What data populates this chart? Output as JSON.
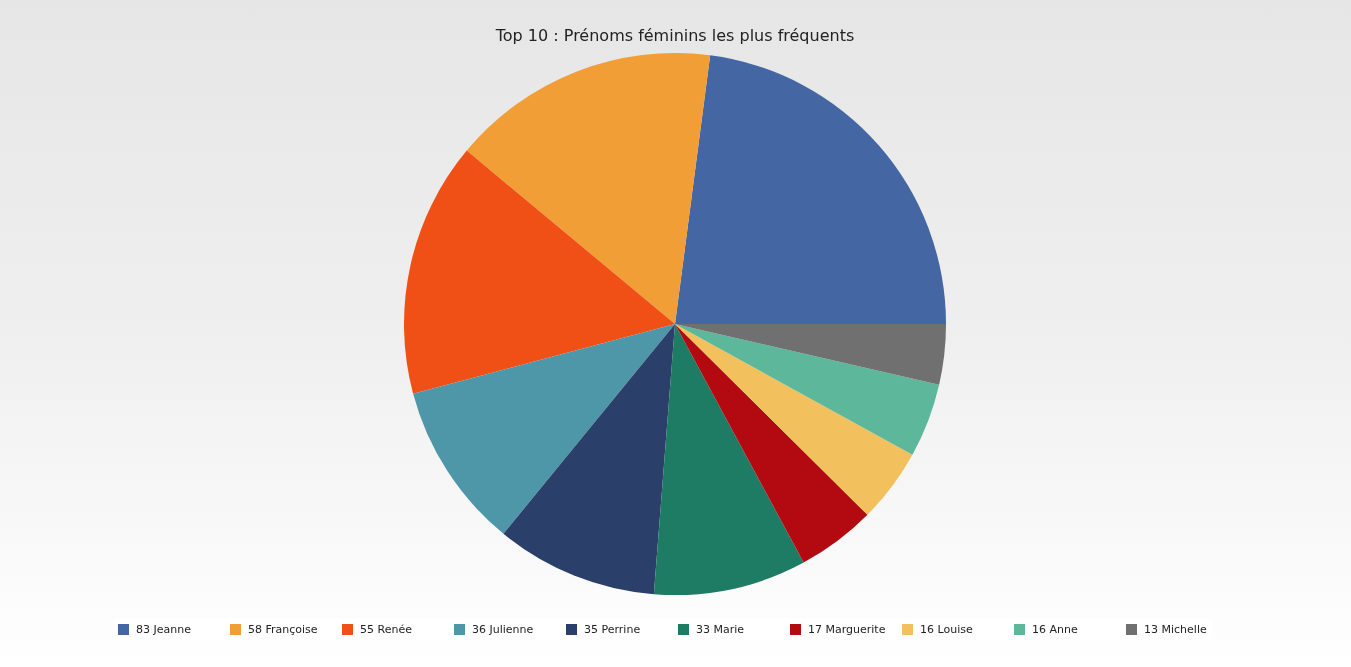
{
  "chart_data": {
    "type": "pie",
    "title": "Top 10 : Prénoms féminins les plus fréquents",
    "categories": [
      "83 Jeanne",
      "58 Françoise",
      "55 Renée",
      "36 Julienne",
      "35 Perrine",
      "33 Marie",
      "17 Marguerite",
      "16 Louise",
      "16 Anne",
      "13 Michelle"
    ],
    "values": [
      83,
      58,
      55,
      36,
      35,
      33,
      17,
      16,
      16,
      13
    ],
    "colors": [
      "#4466a3",
      "#f29e36",
      "#f05015",
      "#4e97a8",
      "#2b3f6b",
      "#1e7b64",
      "#b20a10",
      "#f2c05c",
      "#5cb79b",
      "#707070"
    ],
    "legend": "bottom"
  }
}
